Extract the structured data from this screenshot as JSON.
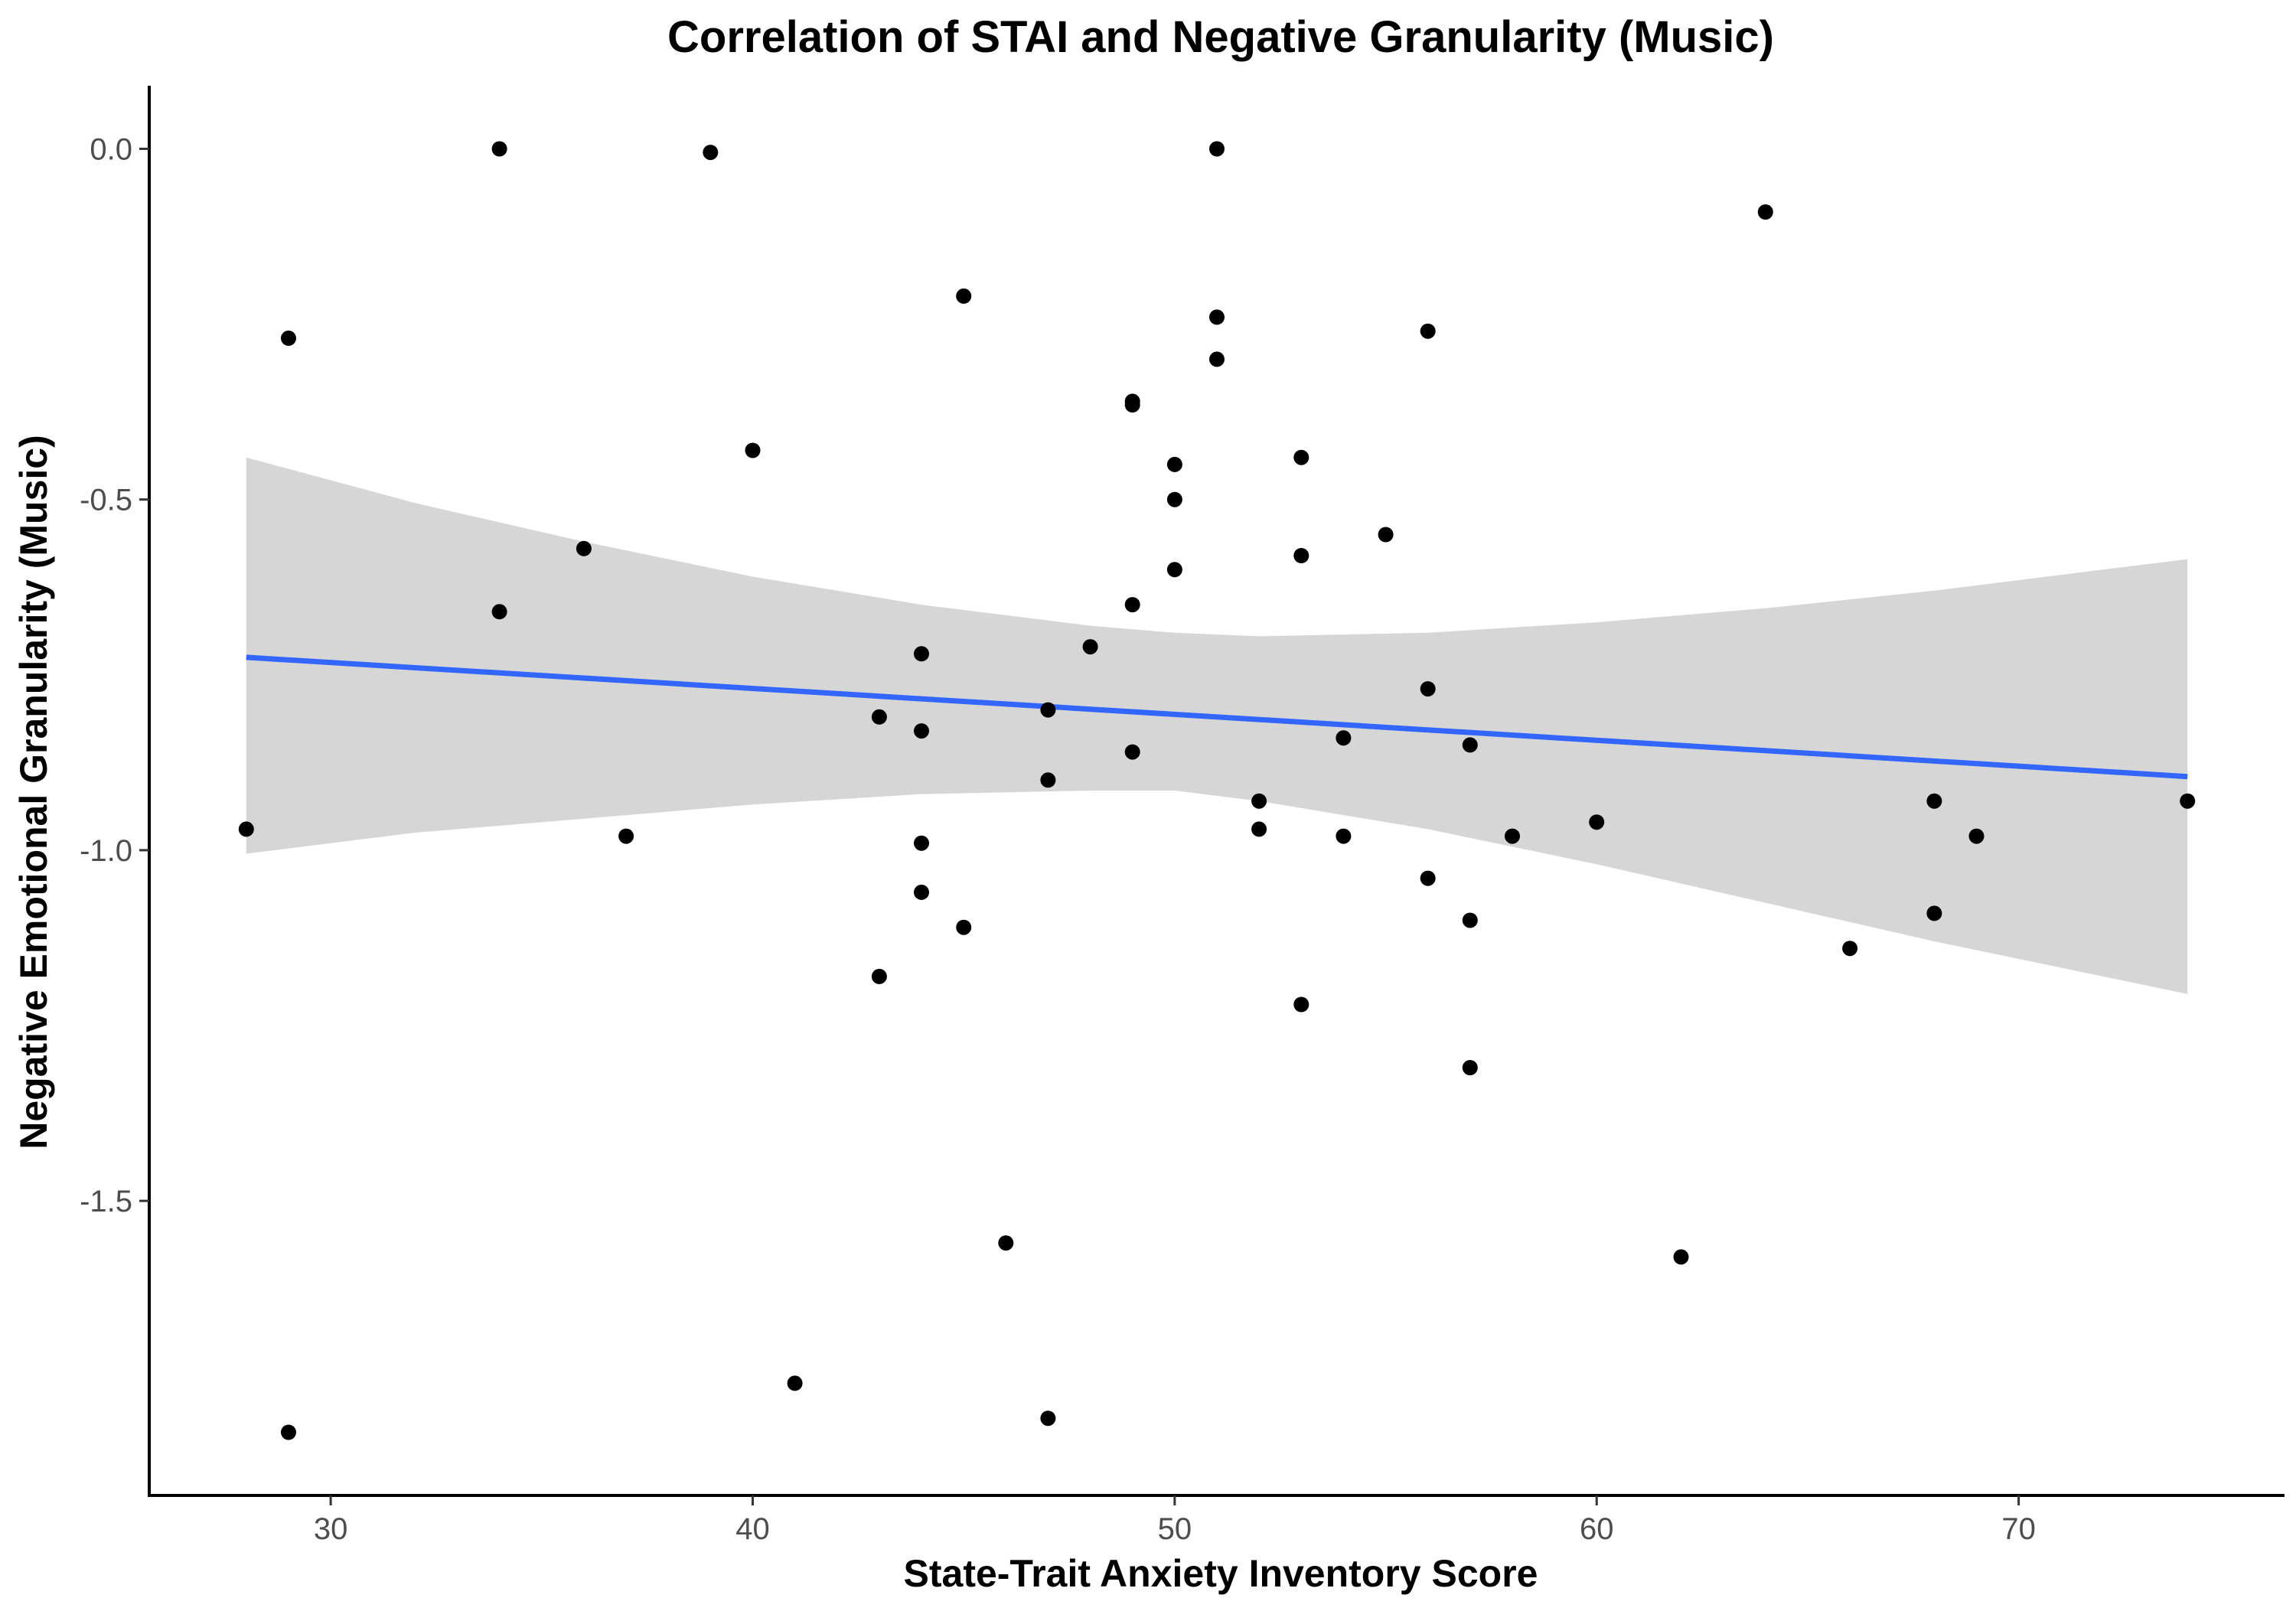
{
  "chart_data": {
    "type": "scatter",
    "title": "Correlation of STAI and Negative Granularity (Music)",
    "xlabel": "State-Trait Anxiety Inventory Score",
    "ylabel": "Negative Emotional Granularity (Music)",
    "xlim": [
      25.7,
      76.3
    ],
    "ylim": [
      -1.92,
      0.09
    ],
    "x_ticks": [
      {
        "value": 30,
        "label": "30"
      },
      {
        "value": 40,
        "label": "40"
      },
      {
        "value": 50,
        "label": "50"
      },
      {
        "value": 60,
        "label": "60"
      },
      {
        "value": 70,
        "label": "70"
      }
    ],
    "y_ticks": [
      {
        "value": 0.0,
        "label": "0.0"
      },
      {
        "value": -0.5,
        "label": "-0.5"
      },
      {
        "value": -1.0,
        "label": "-1.0"
      },
      {
        "value": -1.5,
        "label": "-1.5"
      }
    ],
    "grid": false,
    "legend": "none",
    "point_color": "#000000",
    "fit_color": "#3366ff",
    "ribbon_color": "#999999",
    "ribbon_opacity": 0.4,
    "points": [
      {
        "x": 28,
        "y": -0.97
      },
      {
        "x": 29,
        "y": -0.27
      },
      {
        "x": 29,
        "y": -1.83
      },
      {
        "x": 34,
        "y": 0.0
      },
      {
        "x": 34,
        "y": -0.66
      },
      {
        "x": 36,
        "y": -0.57
      },
      {
        "x": 37,
        "y": -0.98
      },
      {
        "x": 39,
        "y": -0.005
      },
      {
        "x": 40,
        "y": -0.43
      },
      {
        "x": 41,
        "y": -1.76
      },
      {
        "x": 43,
        "y": -0.81
      },
      {
        "x": 43,
        "y": -1.18
      },
      {
        "x": 44,
        "y": -0.72
      },
      {
        "x": 44,
        "y": -0.83
      },
      {
        "x": 44,
        "y": -0.99
      },
      {
        "x": 44,
        "y": -1.06
      },
      {
        "x": 45,
        "y": -0.21
      },
      {
        "x": 45,
        "y": -1.11
      },
      {
        "x": 46,
        "y": -1.56
      },
      {
        "x": 47,
        "y": -0.8
      },
      {
        "x": 47,
        "y": -0.9
      },
      {
        "x": 47,
        "y": -1.81
      },
      {
        "x": 48,
        "y": -0.71
      },
      {
        "x": 49,
        "y": -0.36
      },
      {
        "x": 49,
        "y": -0.365
      },
      {
        "x": 49,
        "y": -0.65
      },
      {
        "x": 49,
        "y": -0.86
      },
      {
        "x": 50,
        "y": -0.45
      },
      {
        "x": 50,
        "y": -0.5
      },
      {
        "x": 50,
        "y": -0.6
      },
      {
        "x": 51,
        "y": 0.0
      },
      {
        "x": 51,
        "y": -0.24
      },
      {
        "x": 51,
        "y": -0.3
      },
      {
        "x": 52,
        "y": -0.93
      },
      {
        "x": 52,
        "y": -0.97
      },
      {
        "x": 53,
        "y": -0.44
      },
      {
        "x": 53,
        "y": -0.58
      },
      {
        "x": 53,
        "y": -1.22
      },
      {
        "x": 54,
        "y": -0.84
      },
      {
        "x": 54,
        "y": -0.98
      },
      {
        "x": 55,
        "y": -0.55
      },
      {
        "x": 56,
        "y": -0.26
      },
      {
        "x": 56,
        "y": -0.77
      },
      {
        "x": 56,
        "y": -1.04
      },
      {
        "x": 57,
        "y": -0.85
      },
      {
        "x": 57,
        "y": -1.1
      },
      {
        "x": 57,
        "y": -1.31
      },
      {
        "x": 58,
        "y": -0.98
      },
      {
        "x": 60,
        "y": -0.96
      },
      {
        "x": 62,
        "y": -1.58
      },
      {
        "x": 64,
        "y": -0.09
      },
      {
        "x": 66,
        "y": -1.14
      },
      {
        "x": 68,
        "y": -0.93
      },
      {
        "x": 68,
        "y": -1.09
      },
      {
        "x": 69,
        "y": -0.98
      },
      {
        "x": 74,
        "y": -0.93
      }
    ],
    "fit_line": {
      "x": [
        28,
        74
      ],
      "y": [
        -0.725,
        -0.895
      ]
    },
    "confidence_band": {
      "x": [
        28,
        32,
        36,
        40,
        44,
        48,
        50,
        52,
        56,
        60,
        64,
        68,
        72,
        74
      ],
      "upper": [
        -0.44,
        -0.505,
        -0.56,
        -0.61,
        -0.65,
        -0.68,
        -0.69,
        -0.695,
        -0.69,
        -0.675,
        -0.655,
        -0.63,
        -0.6,
        -0.585
      ],
      "lower": [
        -1.005,
        -0.975,
        -0.955,
        -0.935,
        -0.92,
        -0.915,
        -0.915,
        -0.93,
        -0.97,
        -1.02,
        -1.075,
        -1.13,
        -1.18,
        -1.205
      ]
    }
  }
}
